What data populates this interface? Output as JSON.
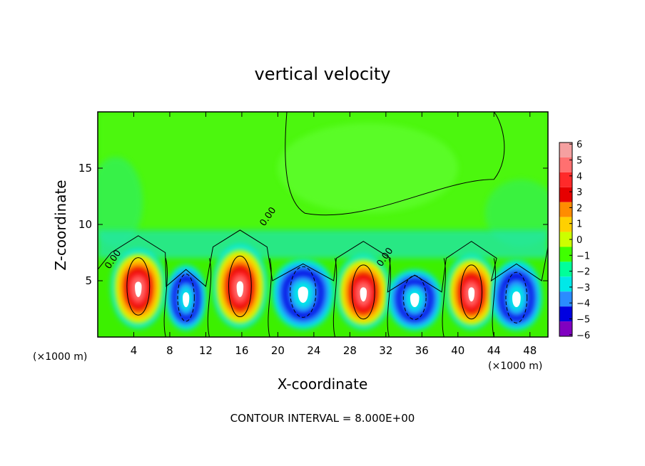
{
  "chart_data": {
    "type": "heatmap",
    "title": "vertical velocity",
    "xlabel": "X-coordinate",
    "ylabel": "Z-coordinate",
    "x_unit": "(×1000 m)",
    "xlim": [
      0,
      50
    ],
    "ylim": [
      0,
      20
    ],
    "x_ticks": [
      4,
      8,
      12,
      16,
      20,
      24,
      28,
      32,
      36,
      40,
      44,
      48
    ],
    "y_ticks": [
      5,
      10,
      15
    ],
    "footer": "CONTOUR INTERVAL = 8.000E+00",
    "contour_labels": [
      "0.00",
      "0.00",
      "0.00"
    ],
    "colorbar": {
      "ticks": [
        6,
        5,
        4,
        3,
        2,
        1,
        0,
        -1,
        -2,
        -3,
        -4,
        -5,
        -6
      ],
      "colors": [
        "#f5a0a0",
        "#ff7070",
        "#ff2a2a",
        "#e60000",
        "#ff8c00",
        "#ffd000",
        "#ccff00",
        "#40ff00",
        "#00ff9a",
        "#00e8e8",
        "#2a8cff",
        "#0000e0",
        "#8000c0"
      ]
    },
    "cells": [
      {
        "x": 4.5,
        "sign": 1,
        "z": 4.5,
        "halfwidth": 3.0,
        "top": 8.5
      },
      {
        "x": 9.8,
        "sign": -1,
        "z": 3.5,
        "halfwidth": 2.2,
        "top": 7.0
      },
      {
        "x": 15.8,
        "sign": 1,
        "z": 4.5,
        "halfwidth": 3.0,
        "top": 9.0
      },
      {
        "x": 22.8,
        "sign": -1,
        "z": 4.0,
        "halfwidth": 3.4,
        "top": 7.5
      },
      {
        "x": 29.5,
        "sign": 1,
        "z": 4.0,
        "halfwidth": 3.0,
        "top": 8.0
      },
      {
        "x": 35.2,
        "sign": -1,
        "z": 3.5,
        "halfwidth": 3.0,
        "top": 6.5
      },
      {
        "x": 41.5,
        "sign": 1,
        "z": 4.0,
        "halfwidth": 2.8,
        "top": 8.0
      },
      {
        "x": 46.5,
        "sign": -1,
        "z": 3.5,
        "halfwidth": 2.8,
        "top": 7.5
      }
    ]
  }
}
